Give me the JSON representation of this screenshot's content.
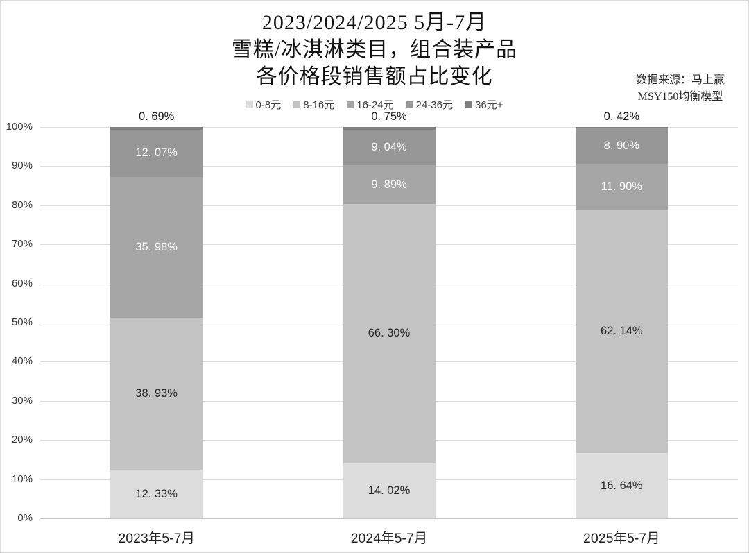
{
  "title": {
    "line1": "2023/2024/2025 5月-7月",
    "line2": "雪糕/冰淇淋类目，组合装产品",
    "line3": "各价格段销售额占比变化"
  },
  "source": {
    "line1": "数据来源：马上赢",
    "line2": "MSY150均衡模型"
  },
  "y_axis": {
    "ticks": [
      "0%",
      "10%",
      "20%",
      "30%",
      "40%",
      "50%",
      "60%",
      "70%",
      "80%",
      "90%",
      "100%"
    ]
  },
  "chart_data": {
    "type": "bar",
    "stacked": true,
    "title": "2023/2024/2025 5月-7月 雪糕/冰淇淋类目，组合装产品 各价格段销售额占比变化",
    "categories": [
      "2023年5-7月",
      "2024年5-7月",
      "2025年5-7月"
    ],
    "series": [
      {
        "name": "0-8元",
        "color": "#dcdcdc",
        "values": [
          12.33,
          14.02,
          16.64
        ],
        "display_labels": [
          "12. 33%",
          "14. 02%",
          "16. 64%"
        ],
        "label_color": "#262626",
        "label_position": "inside"
      },
      {
        "name": "8-16元",
        "color": "#c3c3c3",
        "values": [
          38.93,
          66.3,
          62.14
        ],
        "display_labels": [
          "38. 93%",
          "66. 30%",
          "62. 14%"
        ],
        "label_color": "#262626",
        "label_position": "inside"
      },
      {
        "name": "16-24元",
        "color": "#a5a5a5",
        "values": [
          35.98,
          9.89,
          11.9
        ],
        "display_labels": [
          "35. 98%",
          "9. 89%",
          "11. 90%"
        ],
        "label_color": "#fafafa",
        "label_position": "inside"
      },
      {
        "name": "24-36元",
        "color": "#969696",
        "values": [
          12.07,
          9.04,
          8.9
        ],
        "display_labels": [
          "12. 07%",
          "9. 04%",
          "8. 90%"
        ],
        "label_color": "#fafafa",
        "label_position": "inside"
      },
      {
        "name": "36元+",
        "color": "#7f7f7f",
        "values": [
          0.69,
          0.75,
          0.42
        ],
        "display_labels": [
          "0. 69%",
          "0. 75%",
          "0. 42%"
        ],
        "label_color": "#1a1a1a",
        "label_position": "above"
      }
    ],
    "ylim": [
      0,
      100
    ],
    "ytick_step": 10,
    "grid": true,
    "legend_position": "top-center"
  }
}
